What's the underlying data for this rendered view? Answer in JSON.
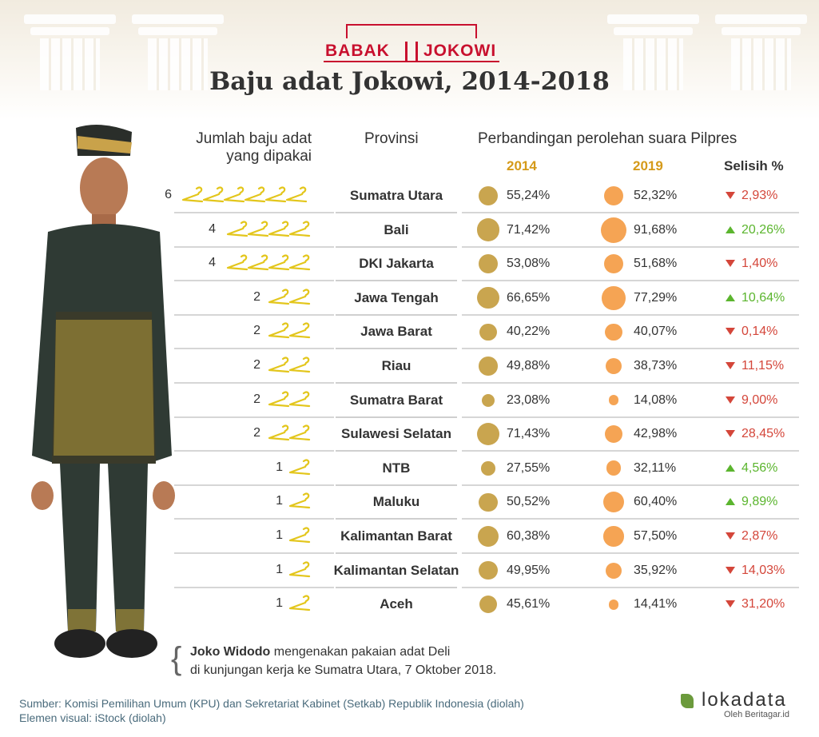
{
  "brand": {
    "part1": "BABAK",
    "part2": "JOKOWI"
  },
  "title": "Baju adat Jokowi, 2014-2018",
  "headers": {
    "count_line1": "Jumlah baju adat",
    "count_line2": "yang dipakai",
    "province": "Provinsi",
    "comparison": "Perbandingan perolehan suara Pilpres",
    "year1": "2014",
    "year2": "2019",
    "diff": "Selisih %"
  },
  "colors": {
    "circle2014": "#c9a54f",
    "circle2019": "#f5a454",
    "up": "#5bb52e",
    "down": "#d4463a",
    "hanger": "#e3c61c"
  },
  "chart_data": {
    "type": "table",
    "rows": [
      {
        "province": "Sumatra Utara",
        "count": 6,
        "v2014": 55.24,
        "v2019": 52.32,
        "diff": 2.93,
        "dir": "down"
      },
      {
        "province": "Bali",
        "count": 4,
        "v2014": 71.42,
        "v2019": 91.68,
        "diff": 20.26,
        "dir": "up"
      },
      {
        "province": "DKI Jakarta",
        "count": 4,
        "v2014": 53.08,
        "v2019": 51.68,
        "diff": 1.4,
        "dir": "down"
      },
      {
        "province": "Jawa Tengah",
        "count": 2,
        "v2014": 66.65,
        "v2019": 77.29,
        "diff": 10.64,
        "dir": "up"
      },
      {
        "province": "Jawa Barat",
        "count": 2,
        "v2014": 40.22,
        "v2019": 40.07,
        "diff": 0.14,
        "dir": "down"
      },
      {
        "province": "Riau",
        "count": 2,
        "v2014": 49.88,
        "v2019": 38.73,
        "diff": 11.15,
        "dir": "down"
      },
      {
        "province": "Sumatra Barat",
        "count": 2,
        "v2014": 23.08,
        "v2019": 14.08,
        "diff": 9.0,
        "dir": "down"
      },
      {
        "province": "Sulawesi Selatan",
        "count": 2,
        "v2014": 71.43,
        "v2019": 42.98,
        "diff": 28.45,
        "dir": "down"
      },
      {
        "province": "NTB",
        "count": 1,
        "v2014": 27.55,
        "v2019": 32.11,
        "diff": 4.56,
        "dir": "up"
      },
      {
        "province": "Maluku",
        "count": 1,
        "v2014": 50.52,
        "v2019": 60.4,
        "diff": 9.89,
        "dir": "up"
      },
      {
        "province": "Kalimantan Barat",
        "count": 1,
        "v2014": 60.38,
        "v2019": 57.5,
        "diff": 2.87,
        "dir": "down"
      },
      {
        "province": "Kalimantan Selatan",
        "count": 1,
        "v2014": 49.95,
        "v2019": 35.92,
        "diff": 14.03,
        "dir": "down"
      },
      {
        "province": "Aceh",
        "count": 1,
        "v2014": 45.61,
        "v2019": 14.41,
        "diff": 31.2,
        "dir": "down"
      }
    ]
  },
  "caption": {
    "name": "Joko Widodo",
    "line1_rest": "mengenakan pakaian adat Deli",
    "line2": "di kunjungan kerja ke Sumatra Utara, 7 Oktober 2018."
  },
  "source": {
    "line1": "Sumber: Komisi Pemilihan Umum (KPU) dan Sekretariat Kabinet (Setkab) Republik Indonesia (diolah)",
    "line2": "Elemen visual: iStock (diolah)"
  },
  "footer_brand": {
    "word": "lokadata",
    "by": "Oleh Beritagar.id"
  }
}
